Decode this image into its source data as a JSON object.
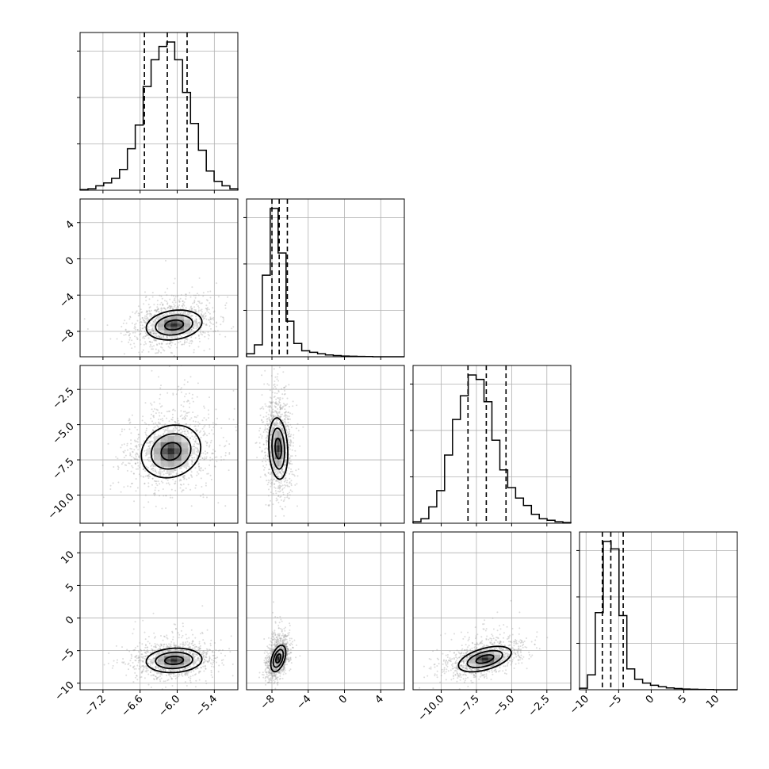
{
  "chart_data": {
    "type": "corner",
    "variables": [
      {
        "ticks": [
          -7.2,
          -6.6,
          -6.0,
          -5.4
        ],
        "tick_labels": [
          "−7.2",
          "−6.6",
          "−6.0",
          "−5.4"
        ],
        "range": [
          -7.57,
          -5.02
        ],
        "quantiles": [
          -6.53,
          -6.16,
          -5.84
        ]
      },
      {
        "ticks": [
          -8,
          -4,
          0,
          4
        ],
        "tick_labels": [
          "−8",
          "−4",
          "0",
          "4"
        ],
        "range": [
          -10.8,
          6.6
        ],
        "quantiles": [
          -8.0,
          -7.2,
          -6.3
        ]
      },
      {
        "ticks": [
          -10.0,
          -7.5,
          -5.0,
          -2.5
        ],
        "tick_labels": [
          "−10.0",
          "−7.5",
          "−5.0",
          "−2.5"
        ],
        "range": [
          -12.0,
          -0.8
        ],
        "quantiles": [
          -8.1,
          -6.8,
          -5.4
        ]
      },
      {
        "ticks": [
          -10,
          -5,
          0,
          5,
          10
        ],
        "tick_labels": [
          "−10",
          "−5",
          "0",
          "5",
          "10"
        ],
        "range": [
          -11.0,
          13.2
        ],
        "quantiles": [
          -7.5,
          -6.2,
          -4.3
        ]
      }
    ],
    "histograms": [
      [
        0.005,
        0.01,
        0.03,
        0.05,
        0.08,
        0.14,
        0.28,
        0.44,
        0.7,
        0.88,
        0.97,
        1.0,
        0.88,
        0.66,
        0.45,
        0.27,
        0.13,
        0.06,
        0.03,
        0.01
      ],
      [
        0.02,
        0.08,
        0.55,
        1.0,
        0.7,
        0.24,
        0.09,
        0.04,
        0.03,
        0.02,
        0.012,
        0.008,
        0.005,
        0.003,
        0.002,
        0.001,
        0,
        0,
        0,
        0
      ],
      [
        0.01,
        0.03,
        0.11,
        0.22,
        0.46,
        0.7,
        0.86,
        1.0,
        0.97,
        0.82,
        0.56,
        0.36,
        0.24,
        0.17,
        0.12,
        0.06,
        0.03,
        0.02,
        0.01,
        0.005
      ],
      [
        0.01,
        0.1,
        0.52,
        1.0,
        0.95,
        0.5,
        0.14,
        0.07,
        0.045,
        0.03,
        0.02,
        0.012,
        0.008,
        0.005,
        0.003,
        0.002,
        0.001,
        0,
        0,
        0
      ]
    ],
    "pairs": [
      {
        "x": 0,
        "y": 1,
        "mean": [
          -6.05,
          -7.3
        ],
        "sd": [
          0.3,
          1.1
        ],
        "rho": 0.2
      },
      {
        "x": 0,
        "y": 2,
        "mean": [
          -6.1,
          -6.9
        ],
        "sd": [
          0.32,
          1.25
        ],
        "rho": 0.15
      },
      {
        "x": 1,
        "y": 2,
        "mean": [
          -7.3,
          -6.7
        ],
        "sd": [
          0.7,
          1.45
        ],
        "rho": -0.15
      },
      {
        "x": 0,
        "y": 3,
        "mean": [
          -6.05,
          -6.5
        ],
        "sd": [
          0.3,
          1.25
        ],
        "rho": 0.1
      },
      {
        "x": 1,
        "y": 3,
        "mean": [
          -7.3,
          -6.2
        ],
        "sd": [
          0.55,
          1.35
        ],
        "rho": 0.45
      },
      {
        "x": 2,
        "y": 3,
        "mean": [
          -6.9,
          -6.3
        ],
        "sd": [
          1.25,
          1.3
        ],
        "rho": 0.5
      }
    ],
    "contour_levels_sigma": [
      0.5,
      1.0,
      1.5
    ],
    "grid": true,
    "colors": {
      "points": "#9a9a9a",
      "line": "#000000",
      "grid": "#b0b0b0"
    }
  }
}
